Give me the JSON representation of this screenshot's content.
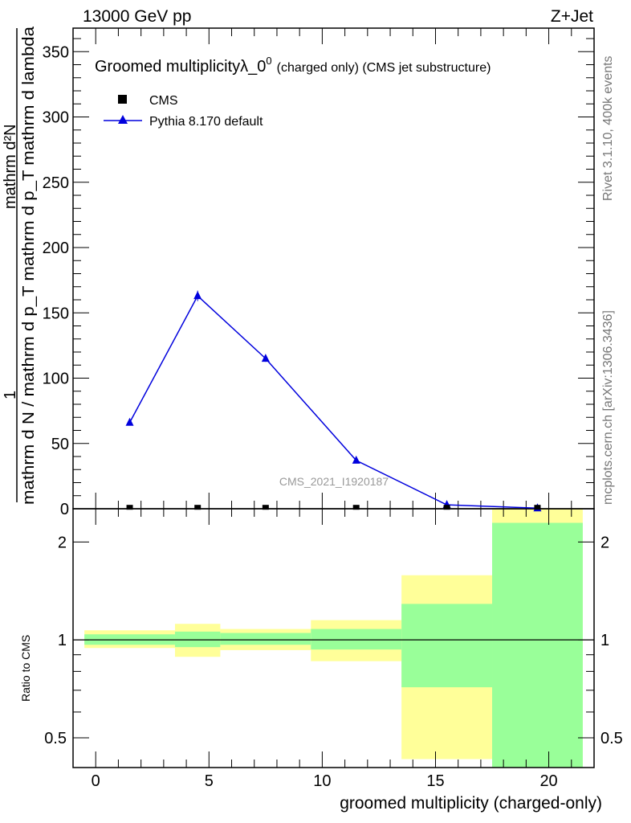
{
  "chart_data": [
    {
      "type": "line",
      "header_left": "13000 GeV pp",
      "header_right": "Z+Jet",
      "title": "Groomed multiplicityλ_0",
      "title_sup": "0",
      "title_suffix": "(charged only) (CMS jet substructure)",
      "ylabel_num": "mathrm d²N",
      "ylabel_prefix": "1",
      "ylabel_den": "mathrm d N / mathrm d p_T mathrm d p_T mathrm d lambda",
      "side_label_top": "Rivet 3.1.10,  400k events",
      "side_label_bottom": "mcplots.cern.ch [arXiv:1306.3436]",
      "watermark": "CMS_2021_I1920187",
      "xlim": [
        -1,
        22
      ],
      "ylim": [
        0,
        368
      ],
      "yticks": [
        0,
        50,
        100,
        150,
        200,
        250,
        300,
        350
      ],
      "series": [
        {
          "name": "CMS",
          "color": "#000000",
          "marker": "square",
          "x": [
            1.5,
            4.5,
            7.5,
            11.5,
            15.5,
            19.5
          ],
          "y": [
            0.5,
            0.5,
            0.5,
            0.5,
            0.5,
            0.5
          ]
        },
        {
          "name": "Pythia 8.170 default",
          "color": "#0000dd",
          "marker": "triangle",
          "x": [
            1.5,
            4.5,
            7.5,
            11.5,
            15.5,
            19.5
          ],
          "y": [
            66,
            163,
            115,
            37,
            3,
            0.5
          ],
          "yerr": [
            1.5,
            4,
            2.5,
            1.5,
            0.5,
            0.2
          ]
        }
      ]
    },
    {
      "type": "area",
      "ylabel": "Ratio to CMS",
      "xlabel": "groomed multiplicity (charged-only)",
      "yscale": "log",
      "ylim": [
        0.405,
        2.53
      ],
      "yticks": [
        0.5,
        1,
        2
      ],
      "ytick_labels": [
        "0.5",
        "1",
        "2"
      ],
      "xticks": [
        0,
        5,
        10,
        15,
        20
      ],
      "xtick_labels": [
        "0",
        "5",
        "10",
        "15",
        "20"
      ],
      "bin_edges": [
        -0.5,
        3.5,
        5.5,
        9.5,
        13.5,
        17.5,
        21.5
      ],
      "band_outer": {
        "color": "#ffff99",
        "low": [
          0.944,
          0.887,
          0.93,
          0.86,
          0.43,
          0.4
        ],
        "high": [
          1.07,
          1.12,
          1.08,
          1.15,
          1.58,
          2.6
        ]
      },
      "band_inner": {
        "color": "#99ff99",
        "low": [
          0.966,
          0.95,
          0.966,
          0.934,
          0.715,
          0.4
        ],
        "high": [
          1.04,
          1.06,
          1.05,
          1.08,
          1.29,
          2.29
        ]
      }
    }
  ]
}
